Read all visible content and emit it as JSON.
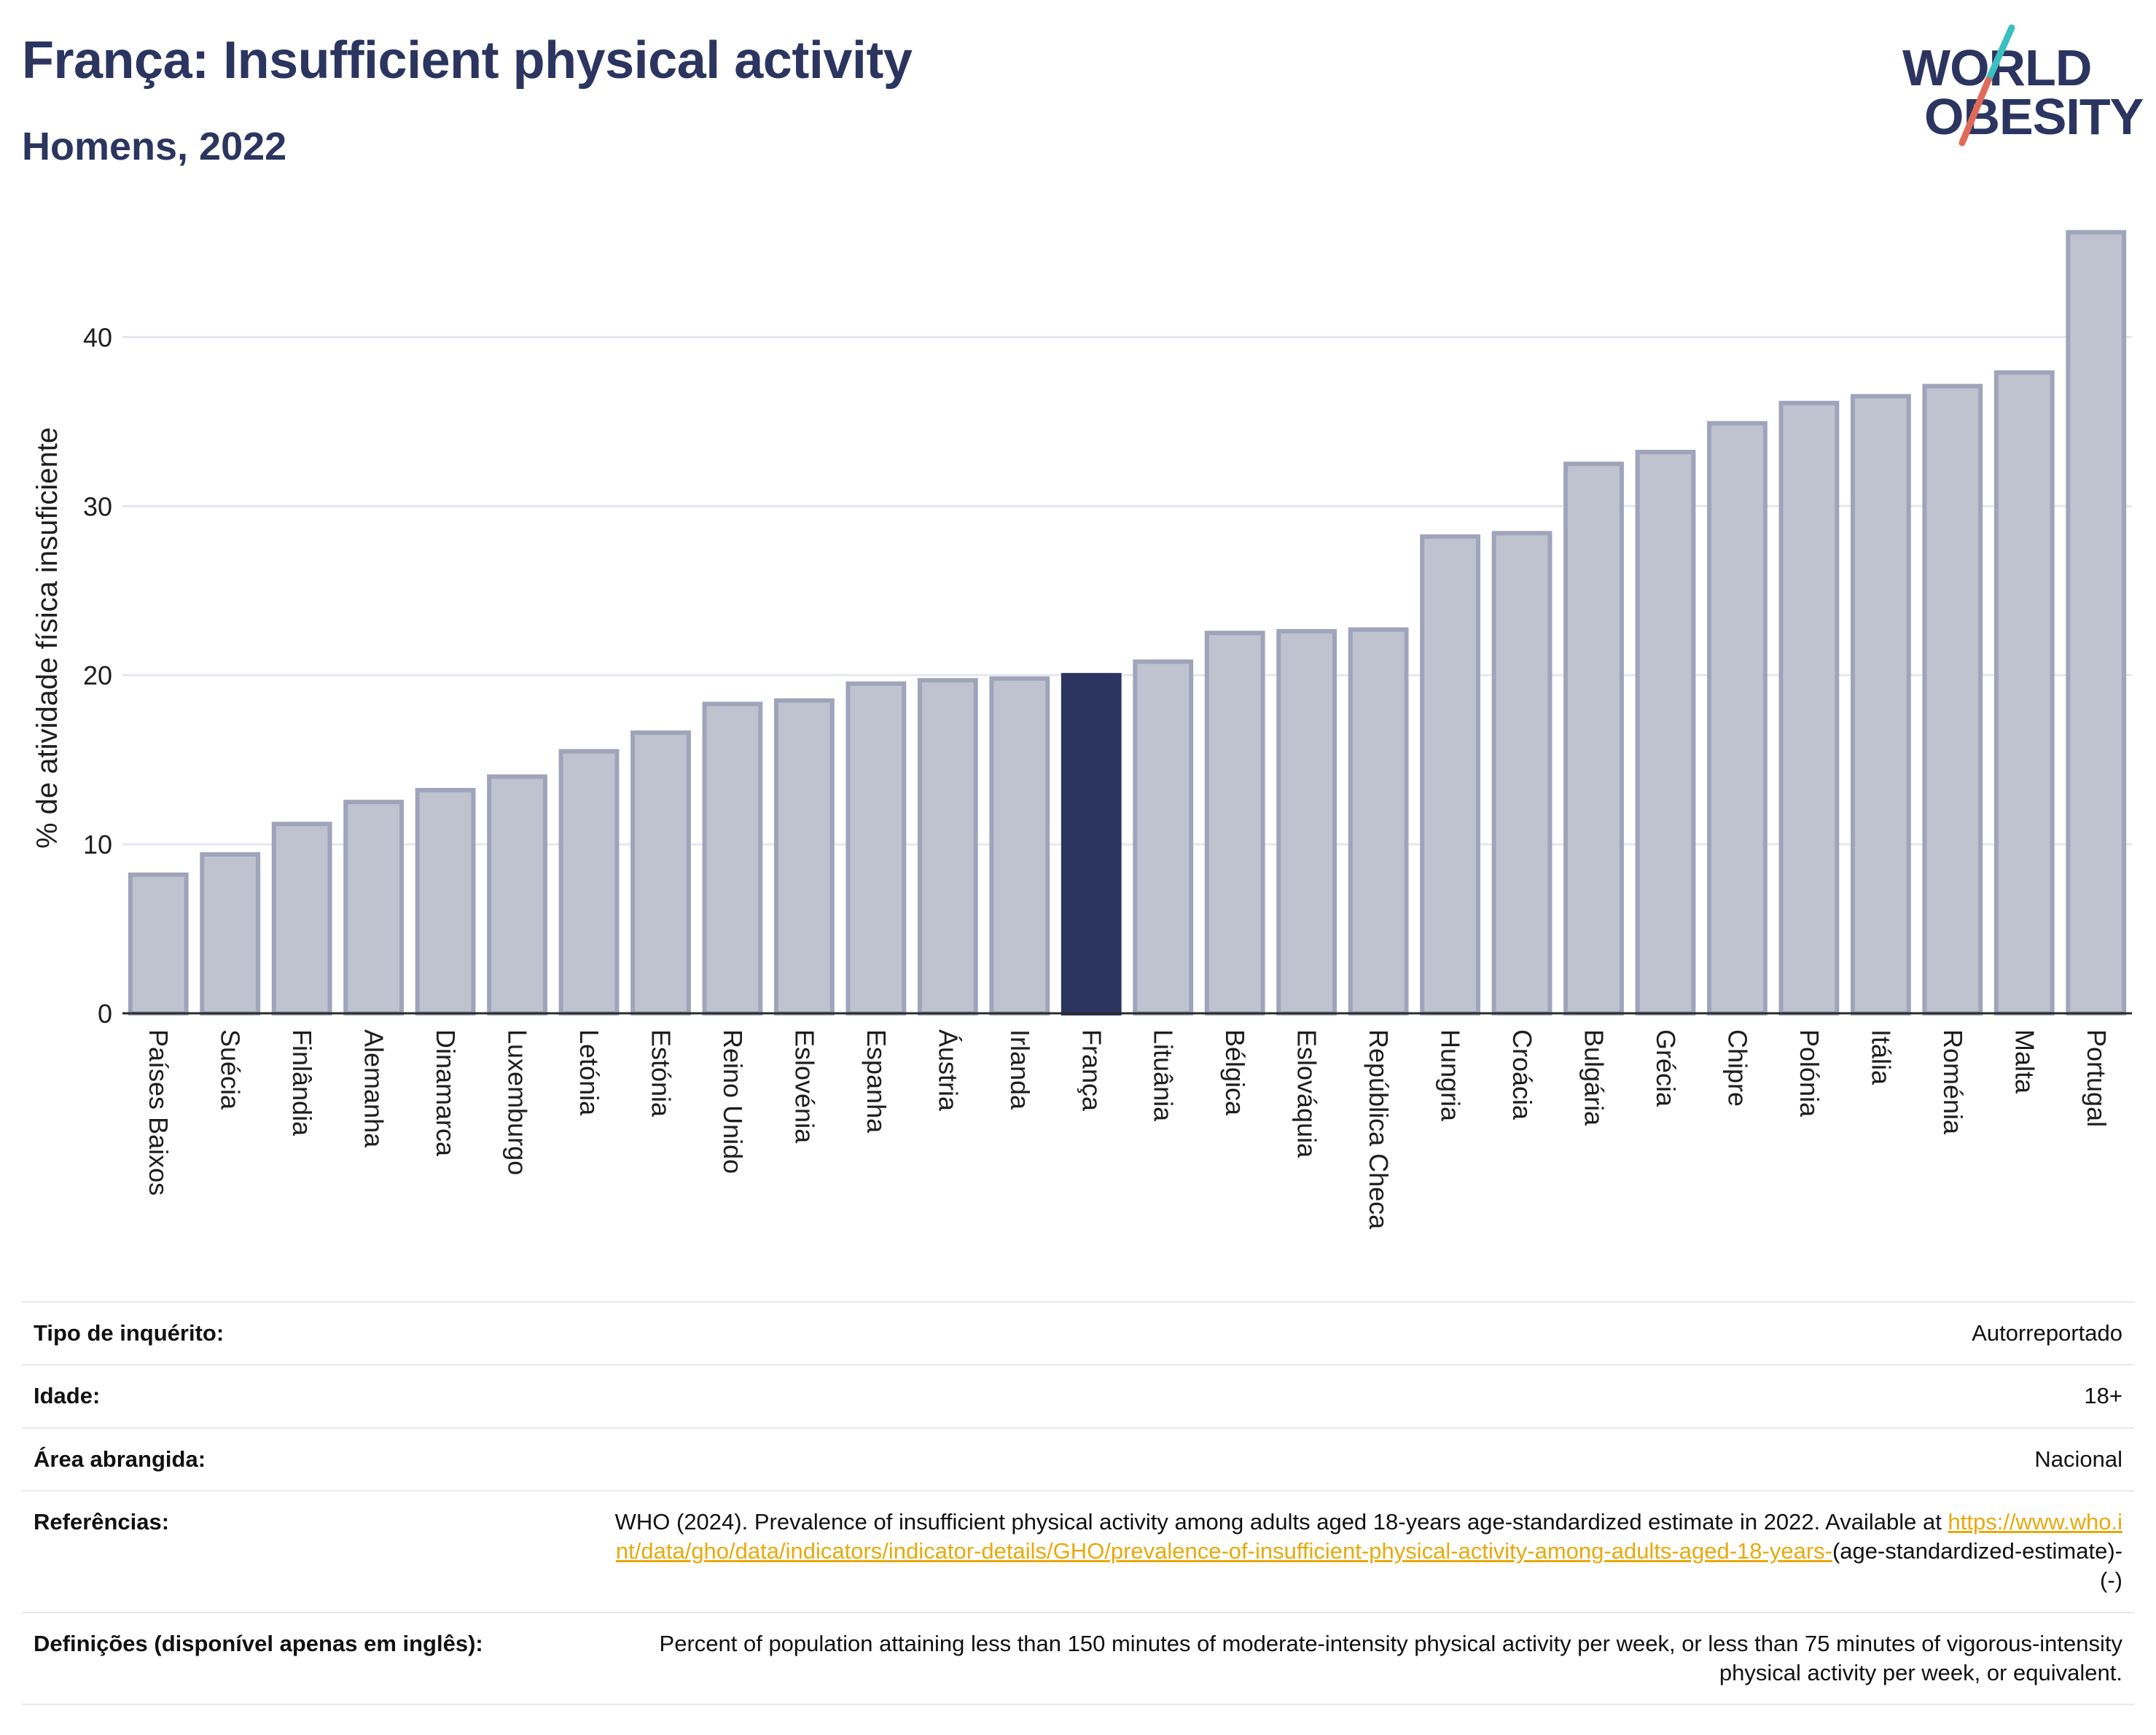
{
  "header": {
    "title": "França: Insufficient physical activity",
    "subtitle": "Homens, 2022"
  },
  "logo": {
    "line1": "WORLD",
    "line2": "OBESITY",
    "slash_colors": [
      "#3bbfbf",
      "#e06a5a"
    ]
  },
  "colors": {
    "bar_fill": "#bfc2cf",
    "bar_stroke": "#9fa4ba",
    "highlight": "#2b3560",
    "grid": "#e6e6ee",
    "axis": "#2b2b2b"
  },
  "chart_data": {
    "type": "bar",
    "title": "França: Insufficient physical activity",
    "subtitle": "Homens, 2022",
    "xlabel": "",
    "ylabel": "% de atividade física insuficiente",
    "ylim": [
      0,
      47
    ],
    "yticks": [
      0,
      10,
      20,
      30,
      40
    ],
    "grid": true,
    "highlight": "França",
    "categories": [
      "Países Baixos",
      "Suécia",
      "Finlândia",
      "Alemanha",
      "Dinamarca",
      "Luxemburgo",
      "Letónia",
      "Estónia",
      "Reino Unido",
      "Eslovénia",
      "Espanha",
      "Áustria",
      "Irlanda",
      "França",
      "Lituânia",
      "Bélgica",
      "Eslováquia",
      "República Checa",
      "Hungria",
      "Croácia",
      "Bulgária",
      "Grécia",
      "Chipre",
      "Polónia",
      "Itália",
      "Roménia",
      "Malta",
      "Portugal"
    ],
    "values": [
      8.2,
      9.4,
      11.2,
      12.5,
      13.2,
      14.0,
      15.5,
      16.6,
      18.3,
      18.5,
      19.5,
      19.7,
      19.8,
      20.0,
      20.8,
      22.5,
      22.6,
      22.7,
      28.2,
      28.4,
      32.5,
      33.2,
      34.9,
      36.1,
      36.5,
      37.1,
      37.9,
      46.2
    ]
  },
  "meta": {
    "rows": [
      {
        "label": "Tipo de inquérito:",
        "value": "Autorreportado"
      },
      {
        "label": "Idade:",
        "value": "18+"
      },
      {
        "label": "Área abrangida:",
        "value": "Nacional"
      }
    ],
    "references_label": "Referências:",
    "references_text": "WHO (2024). Prevalence of insufficient physical activity among adults aged 18-years age-standardized estimate in 2022. Available at",
    "references_link": "https://www.who.int/data/gho/data/indicators/indicator-details/GHO/prevalence-of-insufficient-physical-activity-among-adults-aged-18-years-",
    "references_suffix": "(age-standardized-estimate)-(-)",
    "definitions_label": "Definições (disponível apenas em inglês):",
    "definitions_text": "Percent of population attaining less than 150 minutes of moderate-intensity physical activity per week, or less than 75 minutes of vigorous-intensity physical activity per week, or equivalent."
  }
}
